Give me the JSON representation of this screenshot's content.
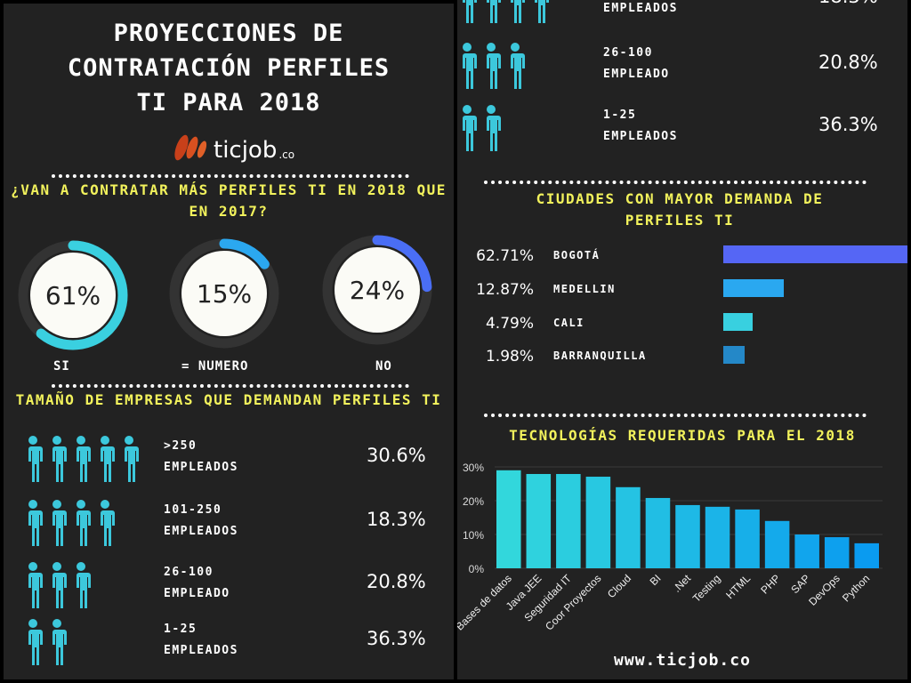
{
  "title_lines": [
    "PROYECCIONES DE",
    "CONTRATACIÓN PERFILES",
    "TI PARA 2018"
  ],
  "logo": {
    "text": "ticjob",
    "suffix": ".co"
  },
  "question": {
    "title": "¿VAN A CONTRATAR MÁS PERFILES TI EN 2018 QUE EN 2017?"
  },
  "sizes_title": "TAMAÑO DE EMPRESAS QUE DEMANDAN PERFILES TI",
  "cities_title": "CIUDADES CON MAYOR DEMANDA DE PERFILES TI",
  "tech_title": "TECNOLOGÍAS REQUERIDAS PARA EL 2018",
  "footer_url": "www.ticjob.co",
  "colors": {
    "background": "#222222",
    "heading": "#f2f25c",
    "people": "#3cc8dc"
  },
  "chart_data": [
    {
      "type": "pie",
      "variant": "donut",
      "categories": [
        "SI",
        "= NUMERO",
        "NO"
      ],
      "values": [
        61,
        15,
        24
      ],
      "labels": [
        "61%",
        "15%",
        "24%"
      ],
      "colors": [
        "#3ad0e0",
        "#2ba8f0",
        "#4a6ef5"
      ]
    },
    {
      "type": "table",
      "categories": [
        ">250 EMPLEADOS",
        "101-250 EMPLEADOS",
        "26-100 EMPLEADO",
        "1-25 EMPLEADOS"
      ],
      "values": [
        30.6,
        18.3,
        20.8,
        36.3
      ],
      "labels": [
        "30.6%",
        "18.3%",
        "20.8%",
        "36.3%"
      ],
      "icon_counts": [
        5,
        4,
        3,
        2
      ],
      "icon": "person-icon"
    },
    {
      "type": "bar",
      "orientation": "horizontal",
      "categories": [
        "BOGOTÁ",
        "MEDELLIN",
        "CALI",
        "BARRANQUILLA"
      ],
      "values": [
        62.71,
        12.87,
        4.79,
        1.98
      ],
      "labels": [
        "62.71%",
        "12.87%",
        "4.79%",
        "1.98%"
      ],
      "colors": [
        "#5566f5",
        "#2aa8f0",
        "#38d0e0",
        "#2488c8"
      ]
    },
    {
      "type": "bar",
      "categories": [
        "Bases de datos",
        "Java JEE",
        "Seguridad IT",
        "Coor Proyectos",
        "Cloud",
        "BI",
        ".Net",
        "Testing",
        "HTML",
        "PHP",
        "SAP",
        "DevOps",
        "Python"
      ],
      "values": [
        29,
        27.9,
        27.9,
        27.1,
        24,
        20.8,
        18.7,
        18.2,
        17.4,
        14,
        10,
        9.2,
        7.4
      ],
      "ylim": [
        0,
        30
      ],
      "yticks": [
        "0%",
        "10%",
        "20%",
        "30%"
      ],
      "grid": true
    }
  ]
}
